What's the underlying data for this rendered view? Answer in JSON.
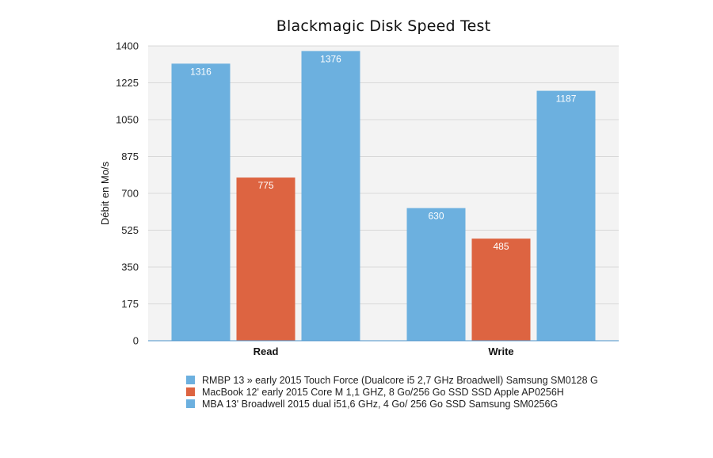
{
  "chart_data": {
    "type": "bar",
    "title": "Blackmagic Disk Speed Test",
    "ylabel": "Débit en Mo/s",
    "xlabel": "",
    "ylim": [
      0,
      1400
    ],
    "yticks": [
      0,
      175,
      350,
      525,
      700,
      875,
      1050,
      1225,
      1400
    ],
    "categories": [
      "Read",
      "Write"
    ],
    "grid": true,
    "legend_position": "bottom",
    "series": [
      {
        "name": "RMBP 13 » early 2015 Touch Force (Dualcore i5 2,7 GHz Broadwell) Samsung SM0128 G",
        "values": [
          1316,
          630
        ],
        "color": "#6cb0df"
      },
      {
        "name": "MacBook 12' early 2015 Core M 1,1 GHZ, 8 Go/256 Go SSD SSD Apple AP0256H",
        "values": [
          775,
          485
        ],
        "color": "#dd6441"
      },
      {
        "name": "MBA 13' Broadwell  2015 dual i51,6 GHz, 4 Go/ 256 Go SSD Samsung SM0256G",
        "values": [
          1376,
          1187
        ],
        "color": "#6cb0df"
      }
    ]
  }
}
